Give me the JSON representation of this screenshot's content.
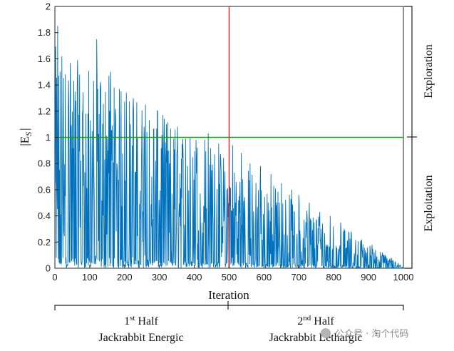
{
  "chart_data": {
    "type": "line",
    "xlabel": "Iteration",
    "ylabel_main": "|E",
    "ylabel_sub": "S",
    "ylabel_close": "|",
    "xlim": [
      0,
      1000
    ],
    "ylim": [
      0,
      2
    ],
    "xticks": [
      0,
      100,
      200,
      300,
      400,
      500,
      600,
      700,
      800,
      900,
      1000
    ],
    "yticks": [
      0,
      0.2,
      0.4,
      0.6,
      0.8,
      1,
      1.2,
      1.4,
      1.6,
      1.8,
      2
    ],
    "grid": false,
    "colors": {
      "series": "#0072BD",
      "threshold": "#1a9a1a",
      "split": "#e02020",
      "axis": "#222222"
    },
    "threshold_y": 1,
    "split_x": 500,
    "envelope": {
      "start_max": 1.85,
      "end_max": 0.02,
      "shape": "linear-decay"
    },
    "peaks": [
      {
        "x": 8,
        "y": 1.85
      },
      {
        "x": 20,
        "y": 1.62
      },
      {
        "x": 30,
        "y": 1.48
      },
      {
        "x": 45,
        "y": 1.35
      },
      {
        "x": 60,
        "y": 1.28
      },
      {
        "x": 80,
        "y": 1.2
      },
      {
        "x": 95,
        "y": 1.18
      },
      {
        "x": 120,
        "y": 1.75
      },
      {
        "x": 130,
        "y": 1.38
      },
      {
        "x": 155,
        "y": 1.47
      },
      {
        "x": 160,
        "y": 1.5
      },
      {
        "x": 170,
        "y": 1.38
      },
      {
        "x": 190,
        "y": 1.35
      },
      {
        "x": 205,
        "y": 1.34
      },
      {
        "x": 225,
        "y": 1.3
      },
      {
        "x": 260,
        "y": 1.25
      },
      {
        "x": 295,
        "y": 1.2
      },
      {
        "x": 320,
        "y": 1.1
      },
      {
        "x": 345,
        "y": 1.06
      },
      {
        "x": 375,
        "y": 0.99
      },
      {
        "x": 405,
        "y": 0.98
      },
      {
        "x": 430,
        "y": 0.98
      },
      {
        "x": 440,
        "y": 1.03
      },
      {
        "x": 470,
        "y": 0.95
      },
      {
        "x": 510,
        "y": 0.94
      },
      {
        "x": 535,
        "y": 0.88
      },
      {
        "x": 560,
        "y": 0.8
      },
      {
        "x": 590,
        "y": 0.78
      },
      {
        "x": 620,
        "y": 0.72
      },
      {
        "x": 650,
        "y": 0.65
      },
      {
        "x": 680,
        "y": 0.6
      },
      {
        "x": 700,
        "y": 0.56
      },
      {
        "x": 730,
        "y": 0.5
      },
      {
        "x": 760,
        "y": 0.43
      },
      {
        "x": 790,
        "y": 0.4
      },
      {
        "x": 820,
        "y": 0.35
      },
      {
        "x": 850,
        "y": 0.28
      },
      {
        "x": 880,
        "y": 0.22
      },
      {
        "x": 910,
        "y": 0.18
      },
      {
        "x": 940,
        "y": 0.12
      },
      {
        "x": 965,
        "y": 0.08
      },
      {
        "x": 985,
        "y": 0.04
      },
      {
        "x": 1000,
        "y": 0.01
      }
    ],
    "annotations": {
      "exploration": "Exploration",
      "exploitation": "Exploitation",
      "first_half_num": "1",
      "first_half_sup": "st",
      "first_half_word": " Half",
      "first_half_desc": "Jackrabbit Energic",
      "second_half_num": "2",
      "second_half_sup": "nd",
      "second_half_word": " Half",
      "second_half_desc": "Jackrabbit Lethargic"
    }
  },
  "watermark": "公众号 · 淘个代码"
}
